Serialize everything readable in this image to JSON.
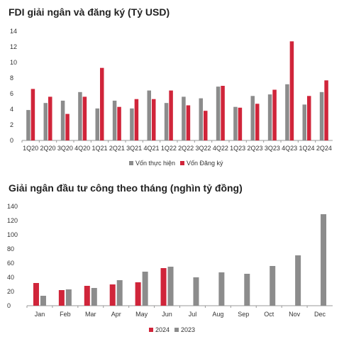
{
  "chart_data": [
    {
      "type": "bar",
      "title": "FDI giải ngân và đăng ký (Tỷ USD)",
      "categories": [
        "1Q20",
        "2Q20",
        "3Q20",
        "4Q20",
        "1Q21",
        "2Q21",
        "3Q21",
        "4Q21",
        "1Q22",
        "2Q22",
        "3Q22",
        "4Q22",
        "1Q23",
        "2Q23",
        "3Q23",
        "4Q23",
        "1Q24",
        "2Q24"
      ],
      "series": [
        {
          "name": "Vốn thực hiện",
          "color": "#8c8c8c",
          "values": [
            3.9,
            4.8,
            5.1,
            6.2,
            4.1,
            5.1,
            4.1,
            6.4,
            4.8,
            5.6,
            5.4,
            6.9,
            4.3,
            5.7,
            5.9,
            7.2,
            4.6,
            6.2
          ]
        },
        {
          "name": "Vốn Đăng ký",
          "color": "#d0253a",
          "values": [
            6.6,
            5.6,
            3.4,
            5.6,
            9.3,
            4.3,
            5.3,
            5.3,
            6.4,
            4.5,
            3.8,
            7.0,
            4.2,
            4.7,
            6.5,
            12.7,
            5.7,
            7.7
          ]
        }
      ],
      "ylim": [
        0,
        14
      ],
      "yticks": [
        0,
        2,
        4,
        6,
        8,
        10,
        12,
        14
      ],
      "legend": "bottom-center",
      "grid": false
    },
    {
      "type": "bar",
      "title": "Giải ngân đầu tư công theo tháng (nghìn tỷ đồng)",
      "categories": [
        "Jan",
        "Feb",
        "Mar",
        "Apr",
        "May",
        "Jun",
        "Jul",
        "Aug",
        "Sep",
        "Oct",
        "Nov",
        "Dec"
      ],
      "series": [
        {
          "name": "2024",
          "color": "#d0253a",
          "values": [
            32,
            22,
            28,
            30,
            33,
            53,
            null,
            null,
            null,
            null,
            null,
            null
          ]
        },
        {
          "name": "2023",
          "color": "#8c8c8c",
          "values": [
            14,
            23,
            25,
            36,
            48,
            55,
            40,
            47,
            45,
            56,
            71,
            129
          ]
        }
      ],
      "ylim": [
        0,
        140
      ],
      "yticks": [
        0,
        20,
        40,
        60,
        80,
        100,
        120,
        140
      ],
      "legend": "bottom-center",
      "grid": false
    }
  ]
}
